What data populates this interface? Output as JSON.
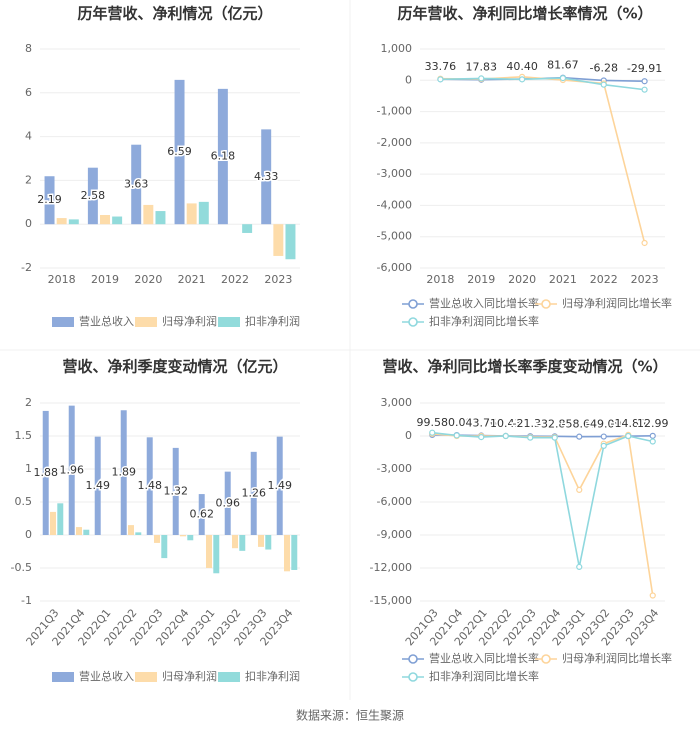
{
  "chart_data": [
    {
      "type": "bar",
      "title": "历年营收、净利情况（亿元）",
      "categories": [
        "2018",
        "2019",
        "2020",
        "2021",
        "2022",
        "2023"
      ],
      "series": [
        {
          "name": "营业总收入",
          "color": "#8eaadb",
          "show_values": true,
          "values": [
            2.19,
            2.58,
            3.63,
            6.59,
            6.18,
            4.33
          ]
        },
        {
          "name": "归母净利润",
          "color": "#fddcaa",
          "values": [
            0.28,
            0.42,
            0.88,
            0.95,
            0,
            -1.45
          ]
        },
        {
          "name": "扣非净利润",
          "color": "#92dbdb",
          "values": [
            0.22,
            0.35,
            0.6,
            1.02,
            -0.4,
            -1.6
          ]
        }
      ],
      "ylim": [
        -2,
        8
      ],
      "yticks": [
        -2,
        0,
        2,
        4,
        6,
        8
      ],
      "grid": true
    },
    {
      "type": "line",
      "title": "历年营收、净利同比增长率情况（%）",
      "categories": [
        "2018",
        "2019",
        "2020",
        "2021",
        "2022",
        "2023"
      ],
      "series": [
        {
          "name": "营业总收入同比增长率",
          "color": "#7f9fd4",
          "show_values": true,
          "values": [
            33.76,
            17.83,
            40.4,
            81.67,
            -6.28,
            -29.91
          ],
          "value_labels": [
            "33.76",
            "17.83",
            "40.40",
            "81.67",
            "-6.28",
            "-29.91"
          ]
        },
        {
          "name": "归母净利润同比增长率",
          "color": "#fdd49a",
          "values": [
            50,
            40,
            110,
            8,
            -100,
            -5200
          ]
        },
        {
          "name": "扣非净利润同比增长率",
          "color": "#8fd8de",
          "values": [
            30,
            60,
            30,
            70,
            -140,
            -300
          ]
        }
      ],
      "ylim": [
        -6000,
        1000
      ],
      "yticks": [
        {
          "value": -6000,
          "label": "-6,000"
        },
        {
          "value": -5000,
          "label": "-5,000"
        },
        {
          "value": -4000,
          "label": "-4,000"
        },
        {
          "value": -3000,
          "label": "-3,000"
        },
        {
          "value": -2000,
          "label": "-2,000"
        },
        {
          "value": -1000,
          "label": "-1,000"
        },
        0,
        {
          "value": 1000,
          "label": "1,000"
        }
      ],
      "grid": true
    },
    {
      "type": "bar",
      "title": "营收、净利季度变动情况（亿元）",
      "categories": [
        "2021Q3",
        "2021Q4",
        "2022Q1",
        "2022Q2",
        "2022Q3",
        "2022Q4",
        "2023Q1",
        "2023Q2",
        "2023Q3",
        "2023Q4"
      ],
      "series": [
        {
          "name": "营业总收入",
          "color": "#8eaadb",
          "show_values": true,
          "values": [
            1.88,
            1.96,
            1.49,
            1.89,
            1.48,
            1.32,
            0.62,
            0.96,
            1.26,
            1.49
          ]
        },
        {
          "name": "归母净利润",
          "color": "#fddcaa",
          "values": [
            0.35,
            0.12,
            0,
            0.15,
            -0.12,
            -0.02,
            -0.5,
            -0.2,
            -0.18,
            -0.55
          ]
        },
        {
          "name": "扣非净利润",
          "color": "#92dbdb",
          "values": [
            0.48,
            0.08,
            0,
            0.04,
            -0.35,
            -0.08,
            -0.58,
            -0.24,
            -0.22,
            -0.53
          ]
        }
      ],
      "ylim": [
        -1,
        2
      ],
      "yticks": [
        -1,
        -0.5,
        0,
        0.5,
        1,
        1.5,
        2
      ],
      "grid": true
    },
    {
      "type": "line",
      "title": "营收、净利同比增长率季度变动情况（%）",
      "categories": [
        "2021Q3",
        "2021Q4",
        "2022Q1",
        "2022Q2",
        "2022Q3",
        "2022Q4",
        "2023Q1",
        "2023Q2",
        "2023Q3",
        "2023Q4"
      ],
      "series": [
        {
          "name": "营业总收入同比增长率",
          "color": "#7f9fd4",
          "show_values": true,
          "values": [
            99.5,
            80,
            43.76,
            10.43,
            -21.34,
            -32.81,
            -58.6,
            -49.09,
            -14.8,
            12.99
          ],
          "value_labels": [
            "99.50",
            "80.00",
            "43.76",
            "10.43",
            "-21.34",
            "-32.81",
            "-58.60",
            "-49.09",
            "-14.80",
            "12.99"
          ]
        },
        {
          "name": "归母净利润同比增长率",
          "color": "#fdd49a",
          "values": [
            200,
            0,
            0,
            0,
            -100,
            -100,
            -4900,
            -700,
            100,
            -14500
          ]
        },
        {
          "name": "扣非净利润同比增长率",
          "color": "#8fd8de",
          "values": [
            300,
            50,
            -100,
            0,
            -150,
            -150,
            -11900,
            -900,
            0,
            -500
          ]
        }
      ],
      "ylim": [
        -15000,
        3000
      ],
      "yticks": [
        {
          "value": -15000,
          "label": "-15,000"
        },
        {
          "value": -12000,
          "label": "-12,000"
        },
        {
          "value": -9000,
          "label": "-9,000"
        },
        {
          "value": -6000,
          "label": "-6,000"
        },
        {
          "value": -3000,
          "label": "-3,000"
        },
        0,
        {
          "value": 3000,
          "label": "3,000"
        }
      ],
      "grid": true
    }
  ],
  "source": "数据来源：恒生聚源"
}
